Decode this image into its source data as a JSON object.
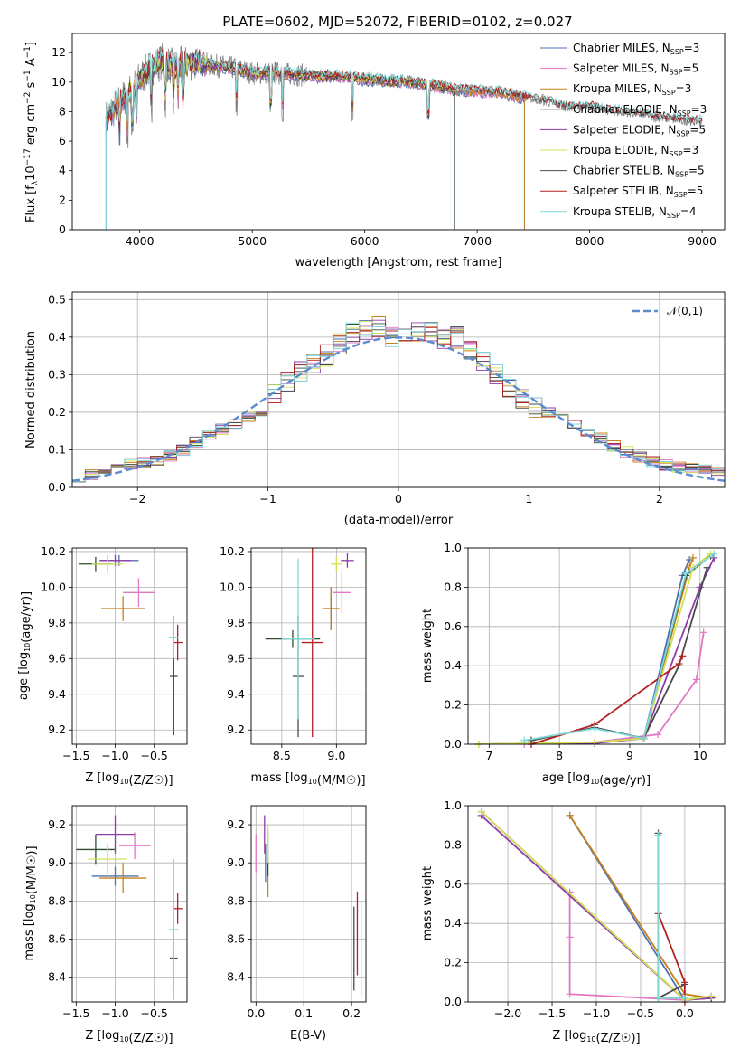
{
  "title": "PLATE=0602, MJD=52072, FIBERID=0102, z=0.027",
  "series_colors": [
    "#4c72b0",
    "#e377c2",
    "#c8801a",
    "#2f4f2f",
    "#8e3ca8",
    "#d4e157",
    "#4a4a4a",
    "#b22222",
    "#7fd8d8"
  ],
  "series_colors_named": {
    "Chabrier MILES": "#4c72b0",
    "Salpeter MILES": "#e377c2",
    "Kroupa MILES": "#c8801a",
    "Chabrier ELODIE": "#2f4f2f",
    "Salpeter ELODIE": "#8e3ca8",
    "Kroupa ELODIE": "#d4e157",
    "Chabrier STELIB": "#4a4a4a",
    "Salpeter STELIB": "#b22222",
    "Kroupa STELIB": "#7fd8d8"
  },
  "chart_data": [
    {
      "panel": "spectrum",
      "type": "line",
      "xlabel": "wavelength [Angstrom, rest frame]",
      "ylabel": "Flux [f_λ 10^-17 erg cm^-2 s^-1 A^-1]",
      "xlim": [
        3400,
        9200
      ],
      "ylim": [
        0,
        13.3
      ],
      "xticks": [
        4000,
        5000,
        6000,
        7000,
        8000,
        9000
      ],
      "yticks": [
        0,
        2,
        4,
        6,
        8,
        10,
        12
      ],
      "grid": false,
      "legend": {
        "placement": "top-right",
        "entries": [
          {
            "name": "Chabrier MILES",
            "nssp": "3"
          },
          {
            "name": "Salpeter MILES",
            "nssp": "5"
          },
          {
            "name": "Kroupa MILES",
            "nssp": "3"
          },
          {
            "name": "Chabrier ELODIE",
            "nssp": "3"
          },
          {
            "name": "Salpeter ELODIE",
            "nssp": "5"
          },
          {
            "name": "Kroupa ELODIE",
            "nssp": "3"
          },
          {
            "name": "Chabrier STELIB",
            "nssp": "5"
          },
          {
            "name": "Salpeter STELIB",
            "nssp": "5"
          },
          {
            "name": "Kroupa STELIB",
            "nssp": "4"
          }
        ]
      },
      "model_continuum": {
        "x": [
          3700,
          3800,
          3900,
          4000,
          4100,
          4200,
          4300,
          4400,
          4500,
          4600,
          4800,
          5000,
          5200,
          5400,
          5600,
          5800,
          6000,
          6200,
          6400,
          6600,
          6800,
          7000,
          7200,
          7400,
          7600,
          7800,
          8000,
          8200,
          8400,
          8600,
          8800,
          9000
        ],
        "y": [
          7.5,
          8.5,
          9.2,
          10.2,
          11.0,
          11.4,
          11.0,
          11.2,
          11.4,
          11.2,
          11.0,
          10.6,
          10.6,
          10.5,
          10.4,
          10.4,
          10.2,
          10.1,
          10.0,
          9.8,
          9.5,
          9.4,
          9.3,
          9.0,
          8.7,
          8.3,
          8.3,
          8.0,
          7.9,
          7.6,
          7.4,
          7.3
        ]
      },
      "model_ranges": {
        "Chabrier MILES": [
          3700,
          7420
        ],
        "Salpeter MILES": [
          3700,
          7420
        ],
        "Kroupa MILES": [
          3700,
          7420
        ],
        "Chabrier ELODIE": [
          3900,
          6800
        ],
        "Salpeter ELODIE": [
          3900,
          6800
        ],
        "Kroupa ELODIE": [
          3900,
          6800
        ],
        "Chabrier STELIB": [
          3700,
          9000
        ],
        "Salpeter STELIB": [
          3700,
          9000
        ],
        "Kroupa STELIB": [
          3700,
          9000
        ]
      }
    },
    {
      "panel": "residuals",
      "type": "line",
      "xlabel": "(data-model)/error",
      "ylabel": "Normed distribution",
      "xlim": [
        -2.5,
        2.5
      ],
      "ylim": [
        0,
        0.52
      ],
      "xticks": [
        -2,
        -1,
        0,
        1,
        2
      ],
      "yticks": [
        0.0,
        0.1,
        0.2,
        0.3,
        0.4,
        0.5
      ],
      "grid": true,
      "legend": {
        "placement": "top-right",
        "entries": [
          {
            "name": "𝒩(0,1)",
            "style": "dashed"
          }
        ]
      },
      "bin_centers": [
        -2.45,
        -2.35,
        -2.25,
        -2.15,
        -2.05,
        -1.95,
        -1.85,
        -1.75,
        -1.65,
        -1.55,
        -1.45,
        -1.35,
        -1.25,
        -1.15,
        -1.05,
        -0.95,
        -0.85,
        -0.75,
        -0.65,
        -0.55,
        -0.45,
        -0.35,
        -0.25,
        -0.15,
        -0.05,
        0.05,
        0.15,
        0.25,
        0.35,
        0.45,
        0.55,
        0.65,
        0.75,
        0.85,
        0.95,
        1.05,
        1.15,
        1.25,
        1.35,
        1.45,
        1.55,
        1.65,
        1.75,
        1.85,
        1.95,
        2.05,
        2.15,
        2.25,
        2.35,
        2.45
      ],
      "hist_mean": [
        0.03,
        0.035,
        0.045,
        0.05,
        0.06,
        0.065,
        0.07,
        0.085,
        0.1,
        0.12,
        0.14,
        0.155,
        0.17,
        0.19,
        0.21,
        0.245,
        0.28,
        0.31,
        0.33,
        0.35,
        0.38,
        0.41,
        0.42,
        0.43,
        0.4,
        0.41,
        0.42,
        0.41,
        0.39,
        0.4,
        0.37,
        0.34,
        0.3,
        0.27,
        0.24,
        0.21,
        0.2,
        0.19,
        0.17,
        0.15,
        0.13,
        0.11,
        0.095,
        0.08,
        0.07,
        0.06,
        0.055,
        0.05,
        0.045,
        0.04
      ]
    },
    {
      "panel": "age_vs_Z",
      "type": "scatter",
      "xlabel": "Z [log10(Z/Z☉)]",
      "ylabel": "age [log10(age/yr)]",
      "xlim": [
        -1.55,
        -0.08
      ],
      "ylim": [
        9.12,
        10.22
      ],
      "xticks": [
        -1.5,
        -1.0,
        -0.5
      ],
      "yticks": [
        9.2,
        9.4,
        9.6,
        9.8,
        10.0,
        10.2
      ],
      "grid": true,
      "errorbars": [
        {
          "x": -0.95,
          "y": 10.15,
          "xerr": 0.25,
          "yerr": 0.03
        },
        {
          "x": -0.7,
          "y": 9.97,
          "xerr": 0.2,
          "yerr": 0.08
        },
        {
          "x": -0.9,
          "y": 9.88,
          "xerr": 0.28,
          "yerr": 0.07
        },
        {
          "x": -1.25,
          "y": 10.13,
          "xerr": 0.22,
          "yerr": 0.04
        },
        {
          "x": -1.0,
          "y": 10.15,
          "xerr": 0.2,
          "yerr": 0.03
        },
        {
          "x": -1.1,
          "y": 10.13,
          "xerr": 0.2,
          "yerr": 0.05
        },
        {
          "x": -0.25,
          "y": 9.5,
          "xerr": 0.05,
          "yerr": 0.33
        },
        {
          "x": -0.2,
          "y": 9.69,
          "xerr": 0.06,
          "yerr": 0.1
        },
        {
          "x": -0.25,
          "y": 9.72,
          "xerr": 0.06,
          "yerr": 0.12
        }
      ]
    },
    {
      "panel": "age_vs_mass",
      "type": "scatter",
      "xlabel": "mass [log10(M/M☉)]",
      "ylabel": "",
      "xlim": [
        8.22,
        9.27
      ],
      "ylim": [
        9.12,
        10.22
      ],
      "xticks": [
        8.5,
        9.0
      ],
      "yticks": [
        9.2,
        9.4,
        9.6,
        9.8,
        10.0,
        10.2
      ],
      "grid": true,
      "errorbars": [
        {
          "x": 8.95,
          "y": 9.88,
          "xerr": 0.06,
          "yerr": 0.12
        },
        {
          "x": 9.05,
          "y": 9.97,
          "xerr": 0.08,
          "yerr": 0.12
        },
        {
          "x": 8.95,
          "y": 9.88,
          "xerr": 0.08,
          "yerr": 0.12
        },
        {
          "x": 8.6,
          "y": 9.71,
          "xerr": 0.25,
          "yerr": 0.05
        },
        {
          "x": 9.1,
          "y": 10.15,
          "xerr": 0.06,
          "yerr": 0.04
        },
        {
          "x": 9.0,
          "y": 10.13,
          "xerr": 0.05,
          "yerr": 0.04
        },
        {
          "x": 8.65,
          "y": 9.5,
          "xerr": 0.05,
          "yerr": 0.34
        },
        {
          "x": 8.78,
          "y": 9.69,
          "xerr": 0.1,
          "yerr": 0.53
        },
        {
          "x": 8.65,
          "y": 9.71,
          "xerr": 0.15,
          "yerr": 0.45
        }
      ]
    },
    {
      "panel": "weight_vs_age",
      "type": "line",
      "xlabel": "age [log10(age/yr)]",
      "ylabel": "mass weight",
      "xlim": [
        6.7,
        10.35
      ],
      "ylim": [
        0,
        1.0
      ],
      "xticks": [
        7,
        8,
        9,
        10
      ],
      "yticks": [
        0.0,
        0.2,
        0.4,
        0.6,
        0.8,
        1.0
      ],
      "grid": true,
      "lines": [
        {
          "x": [
            6.85,
            8.5,
            9.2,
            9.75,
            9.85
          ],
          "y": [
            0.0,
            0.005,
            0.03,
            0.86,
            0.94
          ]
        },
        {
          "x": [
            7.5,
            8.5,
            9.4,
            9.95,
            10.05
          ],
          "y": [
            0.0,
            0.01,
            0.05,
            0.33,
            0.57
          ]
        },
        {
          "x": [
            6.85,
            8.5,
            9.2,
            9.85,
            9.9
          ],
          "y": [
            0.0,
            0.01,
            0.03,
            0.9,
            0.95
          ]
        },
        {
          "x": [
            7.6,
            8.5,
            9.2,
            9.8,
            10.15
          ],
          "y": [
            0.02,
            0.085,
            0.03,
            0.86,
            0.96
          ]
        },
        {
          "x": [
            7.6,
            8.5,
            9.2,
            10.0,
            10.2
          ],
          "y": [
            0.0,
            0.005,
            0.03,
            0.8,
            0.95
          ]
        },
        {
          "x": [
            6.85,
            8.5,
            9.2,
            9.9,
            10.15
          ],
          "y": [
            0.0,
            0.01,
            0.03,
            0.9,
            0.97
          ]
        },
        {
          "x": [
            7.6,
            8.5,
            9.2,
            9.7,
            10.1
          ],
          "y": [
            0.02,
            0.085,
            0.03,
            0.4,
            0.9
          ]
        },
        {
          "x": [
            7.6,
            8.5,
            9.7,
            9.75
          ],
          "y": [
            0.0,
            0.1,
            0.41,
            0.45
          ]
        },
        {
          "x": [
            7.5,
            8.5,
            9.2,
            9.8,
            10.2
          ],
          "y": [
            0.02,
            0.08,
            0.03,
            0.87,
            0.97
          ]
        }
      ]
    },
    {
      "panel": "mass_vs_Z",
      "type": "scatter",
      "xlabel": "Z [log10(Z/Z☉)]",
      "ylabel": "mass [log10(M/M☉)]",
      "xlim": [
        -1.55,
        -0.08
      ],
      "ylim": [
        8.27,
        9.3
      ],
      "xticks": [
        -1.5,
        -1.0,
        -0.5
      ],
      "yticks": [
        8.4,
        8.6,
        8.8,
        9.0,
        9.2
      ],
      "grid": true,
      "errorbars": [
        {
          "x": -1.0,
          "y": 8.93,
          "xerr": 0.3,
          "yerr": 0.05
        },
        {
          "x": -0.75,
          "y": 9.09,
          "xerr": 0.2,
          "yerr": 0.07
        },
        {
          "x": -0.9,
          "y": 8.92,
          "xerr": 0.3,
          "yerr": 0.08
        },
        {
          "x": -1.25,
          "y": 9.07,
          "xerr": 0.25,
          "yerr": 0.08
        },
        {
          "x": -1.0,
          "y": 9.15,
          "xerr": 0.25,
          "yerr": 0.1
        },
        {
          "x": -1.1,
          "y": 9.02,
          "xerr": 0.25,
          "yerr": 0.08
        },
        {
          "x": -0.25,
          "y": 8.5,
          "xerr": 0.05,
          "yerr": 0.17
        },
        {
          "x": -0.2,
          "y": 8.76,
          "xerr": 0.06,
          "yerr": 0.08
        },
        {
          "x": -0.25,
          "y": 8.65,
          "xerr": 0.06,
          "yerr": 0.37
        }
      ]
    },
    {
      "panel": "mass_vs_EBV",
      "type": "scatter",
      "xlabel": "E(B-V)",
      "ylabel": "",
      "xlim": [
        -0.01,
        0.23
      ],
      "ylim": [
        8.27,
        9.3
      ],
      "xticks": [
        0.0,
        0.1,
        0.2
      ],
      "yticks": [
        8.4,
        8.6,
        8.8,
        9.0,
        9.2
      ],
      "grid": true,
      "errorbars": [
        {
          "x": 0.02,
          "y": 9.0,
          "xerr": 0.0,
          "yerr": 0.1
        },
        {
          "x": 0.0,
          "y": 9.05,
          "xerr": 0.0,
          "yerr": 0.1
        },
        {
          "x": 0.025,
          "y": 8.92,
          "xerr": 0.0,
          "yerr": 0.1
        },
        {
          "x": 0.025,
          "y": 9.05,
          "xerr": 0.0,
          "yerr": 0.12
        },
        {
          "x": 0.018,
          "y": 9.15,
          "xerr": 0.0,
          "yerr": 0.1
        },
        {
          "x": 0.025,
          "y": 9.1,
          "xerr": 0.0,
          "yerr": 0.1
        },
        {
          "x": 0.205,
          "y": 8.55,
          "xerr": 0.0,
          "yerr": 0.22
        },
        {
          "x": 0.212,
          "y": 8.63,
          "xerr": 0.0,
          "yerr": 0.22
        },
        {
          "x": 0.22,
          "y": 8.55,
          "xerr": 0.0,
          "yerr": 0.25
        }
      ]
    },
    {
      "panel": "weight_vs_Z",
      "type": "line",
      "xlabel": "Z [log10(Z/Z☉)]",
      "ylabel": "mass weight",
      "xlim": [
        -2.45,
        0.45
      ],
      "ylim": [
        0,
        1.0
      ],
      "xticks": [
        -2.0,
        -1.5,
        -1.0,
        -0.5,
        0.0
      ],
      "yticks": [
        0.0,
        0.2,
        0.4,
        0.6,
        0.8,
        1.0
      ],
      "grid": true,
      "lines": [
        {
          "x": [
            -1.3,
            0.0,
            0.3
          ],
          "y": [
            0.95,
            0.01,
            0.03
          ]
        },
        {
          "x": [
            -1.3,
            -1.3,
            -1.3,
            0.0,
            0.3
          ],
          "y": [
            0.56,
            0.33,
            0.04,
            0.01,
            0.02
          ]
        },
        {
          "x": [
            -1.3,
            0.0,
            0.3
          ],
          "y": [
            0.95,
            0.04,
            0.02
          ]
        },
        {
          "x": [
            -2.3,
            0.0,
            0.3
          ],
          "y": [
            0.97,
            0.01,
            0.02
          ]
        },
        {
          "x": [
            -2.3,
            0.0,
            0.3
          ],
          "y": [
            0.95,
            0.01,
            0.02
          ]
        },
        {
          "x": [
            -2.3,
            0.0,
            0.3
          ],
          "y": [
            0.97,
            0.01,
            0.03
          ]
        },
        {
          "x": [
            -0.3,
            -0.3,
            0.0
          ],
          "y": [
            0.86,
            0.02,
            0.09
          ]
        },
        {
          "x": [
            -0.3,
            0.0,
            0.0
          ],
          "y": [
            0.45,
            0.1,
            0.0
          ]
        },
        {
          "x": [
            -0.3,
            -0.3,
            0.0
          ],
          "y": [
            0.85,
            0.02,
            0.02
          ]
        }
      ]
    }
  ]
}
